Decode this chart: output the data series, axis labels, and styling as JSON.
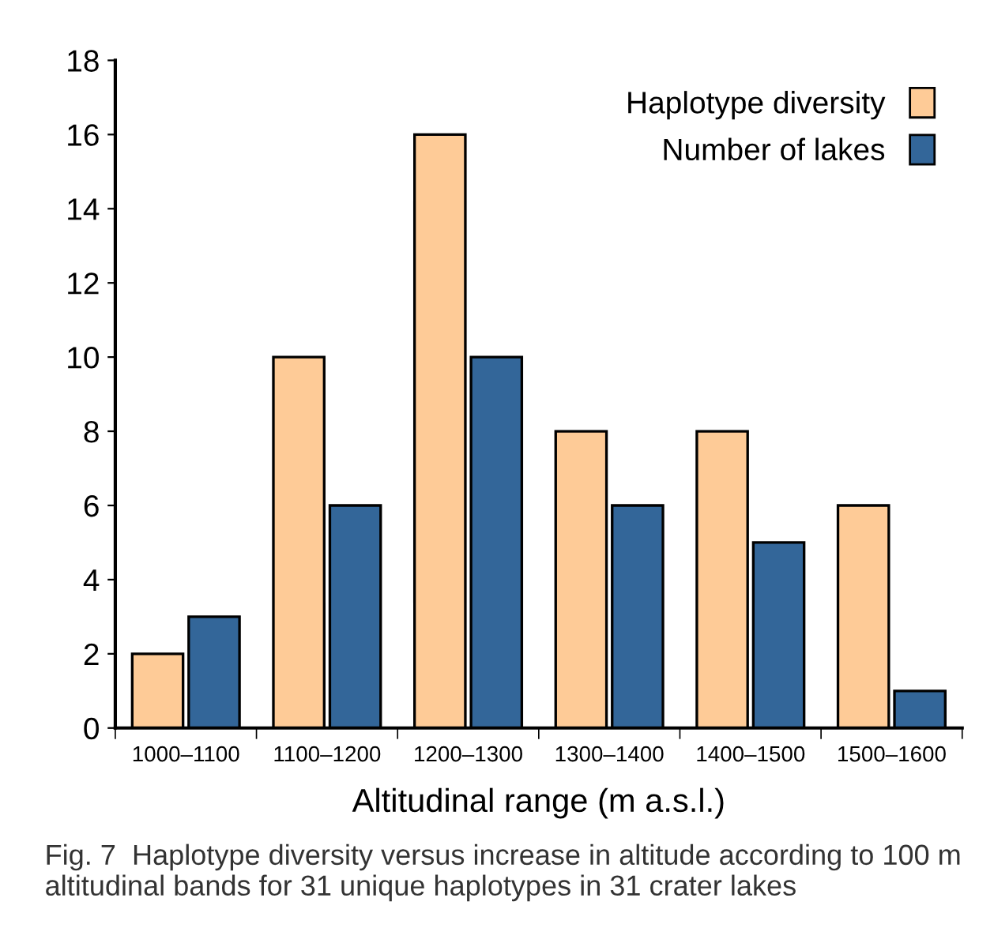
{
  "chart_data": {
    "type": "bar",
    "categories": [
      "1000–1100",
      "1100–1200",
      "1200–1300",
      "1300–1400",
      "1400–1500",
      "1500–1600"
    ],
    "series": [
      {
        "name": "Haplotype diversity",
        "color": "#fecb97",
        "values": [
          2,
          10,
          16,
          8,
          8,
          6
        ]
      },
      {
        "name": "Number of lakes",
        "color": "#336699",
        "values": [
          3,
          6,
          10,
          6,
          5,
          1
        ]
      }
    ],
    "xlabel": "Altitudinal range (m a.s.l.)",
    "ylim": [
      0,
      18
    ],
    "yticks": [
      0,
      2,
      4,
      6,
      8,
      10,
      12,
      14,
      16,
      18
    ],
    "grid": false,
    "legend": "top right",
    "annotations": [
      "Fig. 7  Haplotype diversity versus increase in altitude according to 100 m altitudinal bands for 31 unique haplotypes in 31 crater lakes"
    ]
  }
}
